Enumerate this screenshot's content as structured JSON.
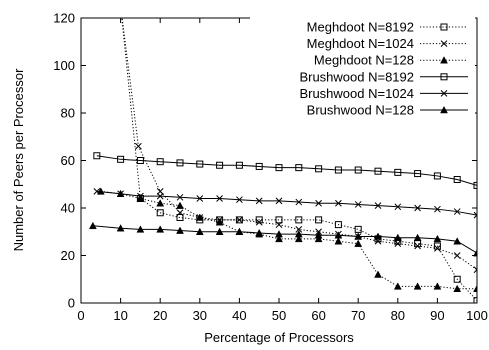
{
  "chart_data": {
    "type": "line",
    "xlabel": "Percentage of Processors",
    "ylabel": "Number of Peers per Processor",
    "xlim": [
      0,
      100
    ],
    "ylim": [
      0,
      120
    ],
    "xticks": [
      0,
      10,
      20,
      30,
      40,
      50,
      60,
      70,
      80,
      90,
      100
    ],
    "yticks": [
      0,
      20,
      40,
      60,
      80,
      100,
      120
    ],
    "grid": false,
    "legend_position": "top-right",
    "series": [
      {
        "name": "Meghdoot N=8192",
        "style": "dotted",
        "marker": "square",
        "x": [
          10,
          15,
          20,
          25,
          30,
          35,
          40,
          45,
          50,
          55,
          60,
          65,
          70,
          75,
          80,
          85,
          90,
          95,
          100
        ],
        "y": [
          125,
          44,
          38,
          36,
          35,
          35,
          35,
          35,
          35,
          35,
          35,
          33,
          31,
          27,
          26,
          25,
          24,
          10,
          1
        ]
      },
      {
        "name": "Meghdoot N=1024",
        "style": "dotted",
        "marker": "cross",
        "x": [
          10,
          14.5,
          20,
          25,
          30,
          35,
          40,
          45,
          50,
          55,
          60,
          65,
          70,
          75,
          80,
          85,
          90,
          95,
          100
        ],
        "y": [
          125,
          66,
          47,
          38,
          36,
          35,
          35,
          34,
          33,
          31,
          30,
          29,
          28,
          26,
          25,
          24,
          23,
          20,
          14
        ]
      },
      {
        "name": "Meghdoot N=128",
        "style": "dotted",
        "marker": "triangle",
        "x": [
          5,
          10,
          15,
          20,
          25,
          30,
          35,
          40,
          45,
          50,
          55,
          60,
          65,
          70,
          75,
          80,
          85,
          90,
          95,
          100
        ],
        "y": [
          47,
          46,
          44,
          42,
          41,
          36,
          34,
          30,
          29,
          27,
          27,
          27,
          26,
          25,
          12,
          7,
          7,
          7,
          6,
          6
        ]
      },
      {
        "name": "Brushwood N=8192",
        "style": "solid",
        "marker": "square",
        "x": [
          4,
          10,
          15,
          20,
          25,
          30,
          35,
          40,
          45,
          50,
          55,
          60,
          65,
          70,
          75,
          80,
          85,
          90,
          95,
          100
        ],
        "y": [
          62,
          60.5,
          60,
          59.5,
          59,
          58.5,
          58,
          58,
          57.5,
          57,
          57,
          56.5,
          56,
          56,
          55.5,
          55,
          54.5,
          53.5,
          52,
          49.5
        ]
      },
      {
        "name": "Brushwood N=1024",
        "style": "solid",
        "marker": "cross",
        "x": [
          4,
          10,
          15,
          20,
          25,
          30,
          35,
          40,
          45,
          50,
          55,
          60,
          65,
          70,
          75,
          80,
          85,
          90,
          95,
          100
        ],
        "y": [
          47,
          46,
          45,
          45,
          44.5,
          44,
          44,
          43.5,
          43,
          43,
          42.5,
          42,
          42,
          41.5,
          41,
          40.5,
          40,
          39.5,
          38.5,
          37
        ]
      },
      {
        "name": "Brushwood N=128",
        "style": "solid",
        "marker": "triangle",
        "x": [
          3,
          10,
          15,
          20,
          25,
          30,
          35,
          40,
          45,
          50,
          55,
          60,
          65,
          70,
          75,
          80,
          85,
          90,
          95,
          100
        ],
        "y": [
          32.5,
          31.5,
          31,
          31,
          30.5,
          30,
          30,
          30,
          29.5,
          29,
          29,
          28.5,
          28.5,
          28,
          28,
          27.5,
          27.5,
          27,
          26,
          21
        ]
      }
    ]
  }
}
